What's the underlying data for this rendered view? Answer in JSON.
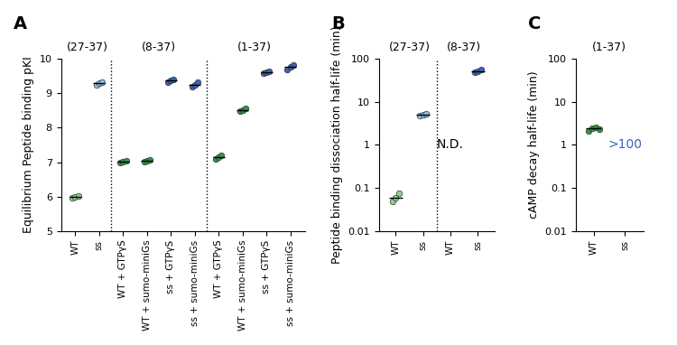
{
  "chart_data": [
    {
      "type": "scatter",
      "title": "A",
      "y_label": "Equilibrium Peptide binding pKI",
      "ylim": [
        5,
        10
      ],
      "yticks": [
        5,
        6,
        7,
        8,
        9,
        10
      ],
      "grid": false,
      "groups": [
        {
          "name": "(27-37)",
          "categories": [
            "WT",
            "ss"
          ],
          "colors": [
            "#90d090",
            "#8fc3ea"
          ],
          "values": [
            6.0,
            9.3
          ],
          "replicates": [
            [
              5.97,
              6.0,
              6.02
            ],
            [
              9.25,
              9.3,
              9.33
            ]
          ]
        },
        {
          "name": "(8-37)",
          "categories": [
            "WT + GTPγS",
            "WT + sumo-miniGs",
            "ss + GTPγS",
            "ss + sumo-miniGs"
          ],
          "colors": [
            "#2e9a45",
            "#2e9a45",
            "#3b64b6",
            "#3b64b6"
          ],
          "values": [
            7.02,
            7.05,
            9.37,
            9.25
          ],
          "replicates": [
            [
              7.0,
              7.02,
              7.05
            ],
            [
              7.02,
              7.05,
              7.07
            ],
            [
              9.33,
              9.37,
              9.4
            ],
            [
              9.18,
              9.25,
              9.32
            ]
          ]
        },
        {
          "name": "(1-37)",
          "categories": [
            "WT + GTPγS",
            "WT + sumo-miniGs",
            "ss + GTPγS",
            "ss + sumo-miniGs"
          ],
          "colors": [
            "#2e9a45",
            "#2e9a45",
            "#3b64b6",
            "#3b64b6"
          ],
          "values": [
            7.15,
            8.5,
            9.6,
            9.75
          ],
          "replicates": [
            [
              7.1,
              7.15,
              7.2
            ],
            [
              8.47,
              8.5,
              8.55
            ],
            [
              9.57,
              9.6,
              9.62
            ],
            [
              9.68,
              9.75,
              9.82
            ]
          ]
        }
      ]
    },
    {
      "type": "scatter",
      "title": "B",
      "y_label": "Peptide binding dissociation half-life (min)",
      "log": "y",
      "ylim": [
        0.01,
        100
      ],
      "yticks": [
        0.01,
        0.1,
        1,
        10,
        100
      ],
      "grid": false,
      "groups": [
        {
          "name": "(27-37)",
          "categories": [
            "WT",
            "ss"
          ],
          "colors": [
            "#90d090",
            "#8fc3ea"
          ],
          "values": [
            0.06,
            5.0
          ],
          "value_labels": [
            null,
            null
          ],
          "replicates": [
            [
              0.05,
              0.06,
              0.075
            ],
            [
              4.8,
              5.0,
              5.3
            ]
          ]
        },
        {
          "name": "(8-37)",
          "categories": [
            "WT",
            "ss"
          ],
          "colors": [
            "#000000",
            "#3b64b6"
          ],
          "values": [
            null,
            52
          ],
          "value_labels": [
            "N.D.",
            null
          ],
          "replicates": [
            [],
            [
              48,
              52,
              55
            ]
          ]
        }
      ]
    },
    {
      "type": "scatter",
      "title": "C",
      "y_label": "cAMP decay half-life (min)",
      "log": "y",
      "ylim": [
        0.01,
        100
      ],
      "yticks": [
        0.01,
        0.1,
        1,
        10,
        100
      ],
      "grid": false,
      "groups": [
        {
          "name": "(1-37)",
          "categories": [
            "WT",
            "ss"
          ],
          "colors": [
            "#2e9a45",
            "#3b64b6"
          ],
          "values": [
            2.4,
            null
          ],
          "value_labels": [
            null,
            ">100"
          ],
          "replicates": [
            [
              2.1,
              2.4,
              2.6,
              2.3
            ],
            []
          ]
        }
      ]
    }
  ]
}
